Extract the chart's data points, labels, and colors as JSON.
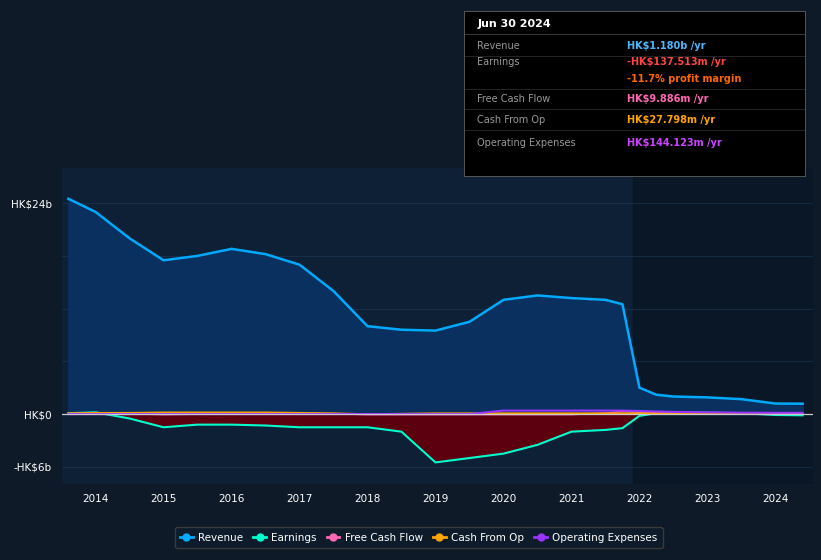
{
  "bg_color": "#0e1a27",
  "plot_bg_color": "#0d2035",
  "grid_color": "#1a3550",
  "zero_line_color": "#cccccc",
  "title_text": "Jun 30 2024",
  "info_rows": [
    {
      "label": "Revenue",
      "value": "HK$1.180b /yr",
      "label_color": "#888888",
      "value_color": "#4db8ff"
    },
    {
      "label": "Earnings",
      "value": "-HK$137.513m /yr",
      "label_color": "#888888",
      "value_color": "#ff4444"
    },
    {
      "label": "",
      "value": "-11.7% profit margin",
      "label_color": "",
      "value_color": "#ff6600"
    },
    {
      "label": "Free Cash Flow",
      "value": "HK$9.886m /yr",
      "label_color": "#888888",
      "value_color": "#ff69b4"
    },
    {
      "label": "Cash From Op",
      "value": "HK$27.798m /yr",
      "label_color": "#888888",
      "value_color": "#ffa500"
    },
    {
      "label": "Operating Expenses",
      "value": "HK$144.123m /yr",
      "label_color": "#888888",
      "value_color": "#cc44ff"
    }
  ],
  "years": [
    2013.6,
    2014.0,
    2014.5,
    2015.0,
    2015.5,
    2016.0,
    2016.5,
    2017.0,
    2017.5,
    2018.0,
    2018.5,
    2019.0,
    2019.5,
    2020.0,
    2020.5,
    2021.0,
    2021.5,
    2021.75,
    2022.0,
    2022.25,
    2022.5,
    2023.0,
    2023.5,
    2024.0,
    2024.4
  ],
  "revenue": [
    24500,
    23000,
    20000,
    17500,
    18000,
    18800,
    18200,
    17000,
    14000,
    10000,
    9600,
    9500,
    10500,
    13000,
    13500,
    13200,
    13000,
    12500,
    3000,
    2200,
    2000,
    1900,
    1700,
    1200,
    1180
  ],
  "earnings": [
    100,
    200,
    -500,
    -1500,
    -1200,
    -1200,
    -1300,
    -1500,
    -1500,
    -1500,
    -2000,
    -5500,
    -5000,
    -4500,
    -3500,
    -2000,
    -1800,
    -1600,
    -200,
    100,
    200,
    150,
    100,
    -100,
    -138
  ],
  "free_cash_flow": [
    50,
    100,
    50,
    -50,
    0,
    50,
    50,
    50,
    50,
    -50,
    -50,
    -50,
    -50,
    -50,
    -50,
    -50,
    100,
    300,
    200,
    150,
    100,
    80,
    50,
    10,
    10
  ],
  "cash_from_op": [
    100,
    150,
    150,
    200,
    200,
    200,
    200,
    150,
    100,
    0,
    50,
    100,
    100,
    100,
    100,
    100,
    100,
    100,
    100,
    80,
    50,
    50,
    40,
    28,
    28
  ],
  "operating_expenses": [
    0,
    0,
    0,
    0,
    0,
    0,
    0,
    0,
    0,
    0,
    0,
    0,
    0,
    400,
    400,
    400,
    400,
    400,
    350,
    300,
    250,
    200,
    160,
    144,
    144
  ],
  "revenue_color": "#00aaff",
  "earnings_color": "#00ffcc",
  "fcf_color": "#ff69b4",
  "cashop_color": "#ffa500",
  "opex_color": "#9933ff",
  "revenue_fill_color": "#0a3060",
  "earnings_fill_pos_color": "#0a3060",
  "earnings_fill_neg_color": "#5c0010",
  "ylim_min": -8000,
  "ylim_max": 28000,
  "yticks": [
    -6000,
    0,
    6000,
    12000,
    18000,
    24000
  ],
  "ytick_labels": [
    "-HK$6b",
    "HK$0",
    "",
    "",
    "",
    "HK$24b"
  ],
  "xtick_years": [
    2014,
    2015,
    2016,
    2017,
    2018,
    2019,
    2020,
    2021,
    2022,
    2023,
    2024
  ],
  "xmin": 2013.5,
  "xmax": 2024.55,
  "shade_start_year": 2021.9,
  "shade_end_year": 2024.55,
  "legend_labels": [
    "Revenue",
    "Earnings",
    "Free Cash Flow",
    "Cash From Op",
    "Operating Expenses"
  ],
  "legend_colors": [
    "#00aaff",
    "#00ffcc",
    "#ff69b4",
    "#ffa500",
    "#9933ff"
  ]
}
